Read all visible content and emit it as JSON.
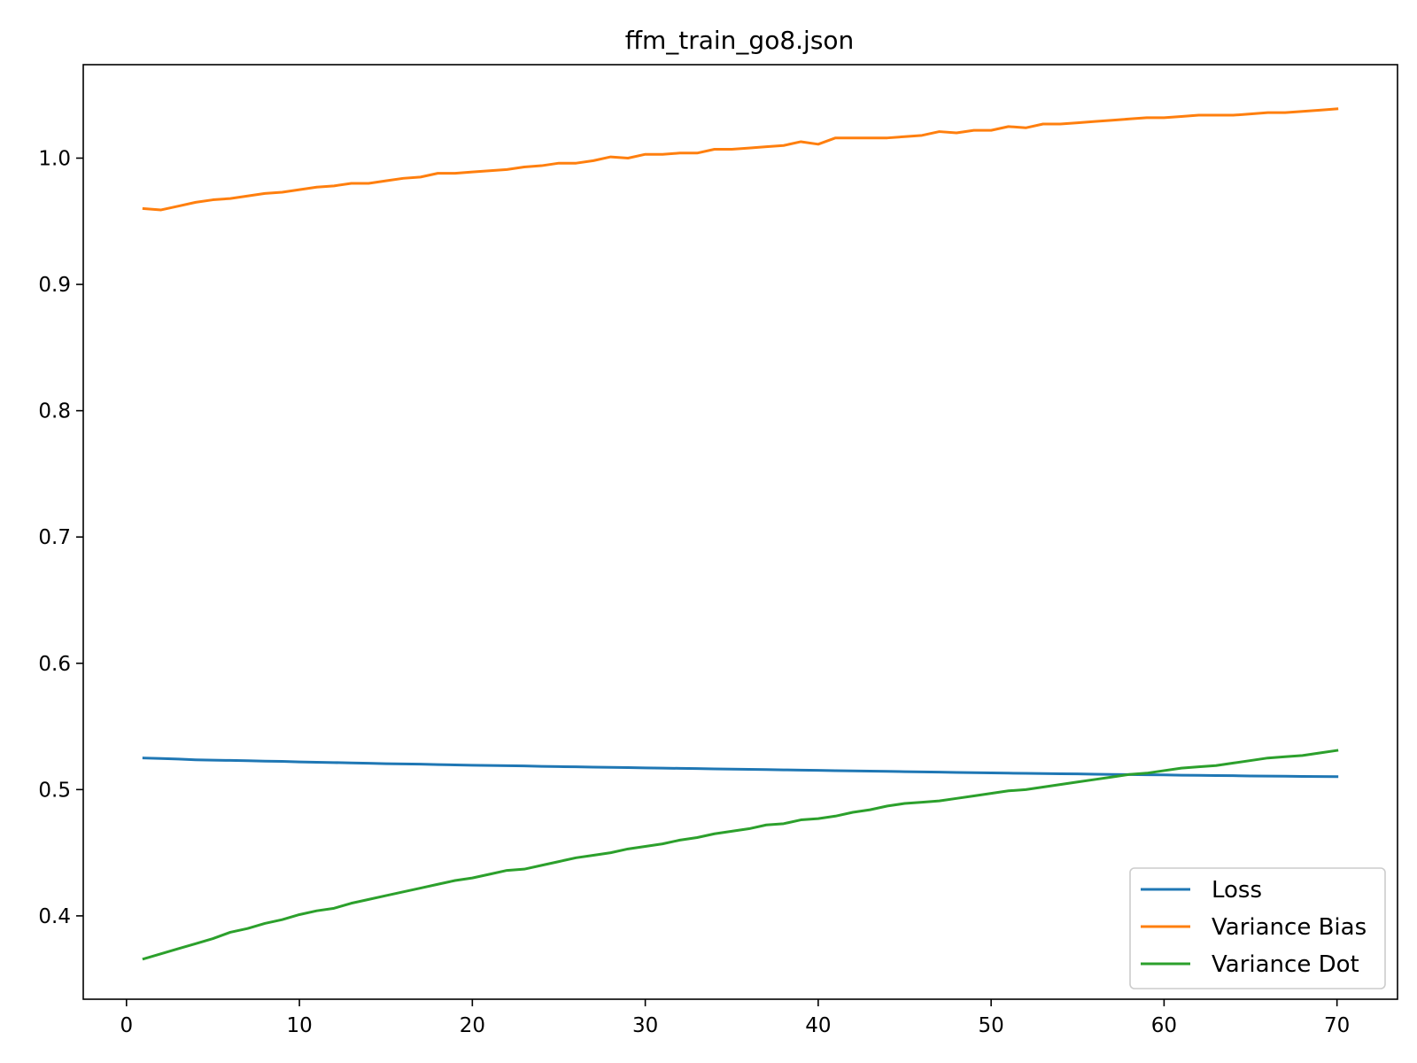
{
  "chart_data": {
    "type": "line",
    "title": "ffm_train_go8.json",
    "xlabel": "",
    "ylabel": "",
    "xlim": [
      -2.5,
      73.5
    ],
    "ylim": [
      0.334,
      1.074
    ],
    "xticks": [
      0,
      10,
      20,
      30,
      40,
      50,
      60,
      70
    ],
    "yticks": [
      0.4,
      0.5,
      0.6,
      0.7,
      0.8,
      0.9,
      1.0
    ],
    "grid": false,
    "legend_position": "lower right",
    "x": [
      1,
      2,
      3,
      4,
      5,
      6,
      7,
      8,
      9,
      10,
      11,
      12,
      13,
      14,
      15,
      16,
      17,
      18,
      19,
      20,
      21,
      22,
      23,
      24,
      25,
      26,
      27,
      28,
      29,
      30,
      31,
      32,
      33,
      34,
      35,
      36,
      37,
      38,
      39,
      40,
      41,
      42,
      43,
      44,
      45,
      46,
      47,
      48,
      49,
      50,
      51,
      52,
      53,
      54,
      55,
      56,
      57,
      58,
      59,
      60,
      61,
      62,
      63,
      64,
      65,
      66,
      67,
      68,
      69,
      70
    ],
    "series": [
      {
        "name": "Loss",
        "color": "#1f77b4",
        "values": [
          0.525,
          0.5246,
          0.5242,
          0.5236,
          0.5233,
          0.5231,
          0.5229,
          0.5225,
          0.5223,
          0.5219,
          0.5216,
          0.5214,
          0.5211,
          0.5208,
          0.5205,
          0.5203,
          0.5201,
          0.5198,
          0.5195,
          0.5193,
          0.5191,
          0.5189,
          0.5187,
          0.5184,
          0.5182,
          0.518,
          0.5178,
          0.5176,
          0.5174,
          0.5172,
          0.517,
          0.5168,
          0.5166,
          0.5164,
          0.5162,
          0.516,
          0.5158,
          0.5156,
          0.5154,
          0.5152,
          0.515,
          0.5148,
          0.5146,
          0.5144,
          0.5142,
          0.514,
          0.5138,
          0.5136,
          0.5134,
          0.5132,
          0.513,
          0.5129,
          0.5127,
          0.5125,
          0.5124,
          0.5122,
          0.512,
          0.5119,
          0.5117,
          0.5116,
          0.5114,
          0.5113,
          0.5111,
          0.511,
          0.5108,
          0.5107,
          0.5106,
          0.5104,
          0.5103,
          0.5102
        ]
      },
      {
        "name": "Variance Bias",
        "color": "#ff7f0e",
        "values": [
          0.96,
          0.959,
          0.962,
          0.965,
          0.967,
          0.968,
          0.97,
          0.972,
          0.973,
          0.975,
          0.977,
          0.978,
          0.98,
          0.98,
          0.982,
          0.984,
          0.985,
          0.988,
          0.988,
          0.989,
          0.99,
          0.991,
          0.993,
          0.994,
          0.996,
          0.996,
          0.998,
          1.001,
          1.0,
          1.003,
          1.003,
          1.004,
          1.004,
          1.007,
          1.007,
          1.008,
          1.009,
          1.01,
          1.013,
          1.011,
          1.016,
          1.016,
          1.016,
          1.016,
          1.017,
          1.018,
          1.021,
          1.02,
          1.022,
          1.022,
          1.025,
          1.024,
          1.027,
          1.027,
          1.028,
          1.029,
          1.03,
          1.031,
          1.032,
          1.032,
          1.033,
          1.034,
          1.034,
          1.034,
          1.035,
          1.036,
          1.036,
          1.037,
          1.038,
          1.039
        ]
      },
      {
        "name": "Variance Dot",
        "color": "#2ca02c",
        "values": [
          0.366,
          0.37,
          0.374,
          0.378,
          0.382,
          0.387,
          0.39,
          0.394,
          0.397,
          0.401,
          0.404,
          0.406,
          0.41,
          0.413,
          0.416,
          0.419,
          0.422,
          0.425,
          0.428,
          0.43,
          0.433,
          0.436,
          0.437,
          0.44,
          0.443,
          0.446,
          0.448,
          0.45,
          0.453,
          0.455,
          0.457,
          0.46,
          0.462,
          0.465,
          0.467,
          0.469,
          0.472,
          0.473,
          0.476,
          0.477,
          0.479,
          0.482,
          0.484,
          0.487,
          0.489,
          0.49,
          0.491,
          0.493,
          0.495,
          0.497,
          0.499,
          0.5,
          0.502,
          0.504,
          0.506,
          0.508,
          0.51,
          0.512,
          0.513,
          0.515,
          0.517,
          0.518,
          0.519,
          0.521,
          0.523,
          0.525,
          0.526,
          0.527,
          0.529,
          0.531
        ]
      }
    ]
  }
}
